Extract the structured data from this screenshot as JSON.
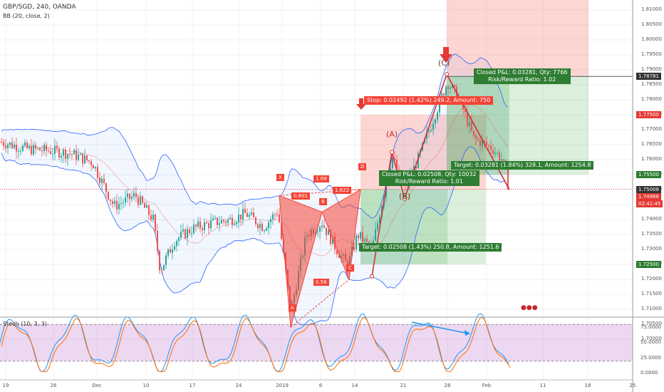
{
  "header": {
    "symbol": "GBP/SGD, 240, OANDA",
    "indicator": "BB (20, close, 2)"
  },
  "stoch": {
    "label": "Stoch (10, 3, 3)",
    "upper": 80,
    "lower": 20
  },
  "price_axis": {
    "ticks": [
      "1.81000",
      "1.80500",
      "1.80000",
      "1.79500",
      "1.79000",
      "1.78500",
      "1.78000",
      "1.77500",
      "1.77000",
      "1.76500",
      "1.76000",
      "1.75500",
      "1.75000",
      "1.74500",
      "1.74000",
      "1.73500",
      "1.73000",
      "1.72500",
      "1.72000",
      "1.71500",
      "1.71000",
      "1.70500",
      "1.70000"
    ],
    "tags": [
      {
        "text": "1.78781",
        "color": "#333333"
      },
      {
        "text": "1.77500",
        "color": "#e53935"
      },
      {
        "text": "1.75500",
        "color": "#2e7d32"
      },
      {
        "text": "1.75008",
        "color": "#333333"
      },
      {
        "text": "1.74988",
        "color": "#e53935"
      },
      {
        "text": "02:41:45",
        "color": "#e53935"
      },
      {
        "text": "1.72500",
        "color": "#2e7d32"
      }
    ]
  },
  "stoch_axis": {
    "ticks": [
      "75.0000",
      "50.0000",
      "25.0000",
      "0.0000"
    ]
  },
  "time_axis": [
    "19",
    "26",
    "Dec",
    "10",
    "17",
    "24",
    "2019",
    "8",
    "14",
    "21",
    "28",
    "Feb",
    "11",
    "18",
    "25"
  ],
  "pattern": {
    "points": [
      "X",
      "A",
      "B",
      "C",
      "D"
    ],
    "ratios": [
      "1.09",
      "0.801",
      "1.622",
      "0.58"
    ],
    "abc": [
      "(A)",
      "(B)",
      "(C)"
    ]
  },
  "positions": {
    "first_stop": "Stop: 0.02492 (1.42%) 249.2, Amount: 750",
    "first_closed": "Closed P&L: 0.02508, Qty: 10032",
    "first_rr": "Risk/Reward Ratio: 1.01",
    "first_target": "Target: 0.02508 (1.43%) 250.8, Amount: 1251.6",
    "second_closed": "Closed P&L: 0.03281, Qty: 7766",
    "second_rr": "Risk/Reward Ratio: 1.02",
    "second_target": "Target: 0.03281 (1.84%) 328.1, Amount: 1254.8"
  },
  "colors": {
    "up": "#26a69a",
    "down": "#ef5350",
    "band": "#2962ff",
    "profit": "#4caf50",
    "loss": "#f44336",
    "stoch_k": "#2196f3",
    "stoch_d": "#ff6d00"
  }
}
